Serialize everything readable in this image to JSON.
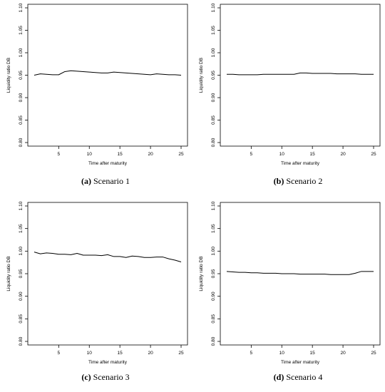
{
  "chart_data": [
    {
      "type": "line",
      "caption_tag": "(a)",
      "caption_text": "Scenario 1",
      "xlabel": "Time after maturity",
      "ylabel": "Liquidity ratio DB",
      "xlim": [
        1,
        25
      ],
      "ylim": [
        0.8,
        1.1
      ],
      "x_ticks": [
        5,
        10,
        15,
        20,
        25
      ],
      "y_ticks": [
        "0.80",
        "0.85",
        "0.90",
        "0.95",
        "1.00",
        "1.05",
        "1.10"
      ],
      "x": [
        1,
        2,
        3,
        4,
        5,
        6,
        7,
        8,
        9,
        10,
        11,
        12,
        13,
        14,
        15,
        16,
        17,
        18,
        19,
        20,
        21,
        22,
        23,
        24,
        25
      ],
      "series": [
        {
          "values": [
            0.95,
            0.953,
            0.952,
            0.951,
            0.951,
            0.958,
            0.96,
            0.959,
            0.958,
            0.957,
            0.956,
            0.955,
            0.955,
            0.957,
            0.956,
            0.955,
            0.954,
            0.953,
            0.952,
            0.951,
            0.953,
            0.952,
            0.951,
            0.951,
            0.95
          ]
        }
      ]
    },
    {
      "type": "line",
      "caption_tag": "(b)",
      "caption_text": "Scenario 2",
      "xlabel": "Time after maturity",
      "ylabel": "Liquidity ratio DB",
      "xlim": [
        1,
        25
      ],
      "ylim": [
        0.8,
        1.1
      ],
      "x_ticks": [
        5,
        10,
        15,
        20,
        25
      ],
      "y_ticks": [
        "0.80",
        "0.85",
        "0.90",
        "0.95",
        "1.00",
        "1.05",
        "1.10"
      ],
      "x": [
        1,
        2,
        3,
        4,
        5,
        6,
        7,
        8,
        9,
        10,
        11,
        12,
        13,
        14,
        15,
        16,
        17,
        18,
        19,
        20,
        21,
        22,
        23,
        24,
        25
      ],
      "series": [
        {
          "values": [
            0.952,
            0.952,
            0.951,
            0.951,
            0.951,
            0.951,
            0.952,
            0.952,
            0.952,
            0.952,
            0.952,
            0.952,
            0.955,
            0.955,
            0.954,
            0.954,
            0.954,
            0.954,
            0.953,
            0.953,
            0.953,
            0.953,
            0.952,
            0.952,
            0.952
          ]
        }
      ]
    },
    {
      "type": "line",
      "caption_tag": "(c)",
      "caption_text": "Scenario 3",
      "xlabel": "Time after maturity",
      "ylabel": "Liquidity ratio DB",
      "xlim": [
        1,
        25
      ],
      "ylim": [
        0.8,
        1.1
      ],
      "x_ticks": [
        5,
        10,
        15,
        20,
        25
      ],
      "y_ticks": [
        "0.80",
        "0.85",
        "0.90",
        "0.95",
        "1.00",
        "1.05",
        "1.10"
      ],
      "x": [
        1,
        2,
        3,
        4,
        5,
        6,
        7,
        8,
        9,
        10,
        11,
        12,
        13,
        14,
        15,
        16,
        17,
        18,
        19,
        20,
        21,
        22,
        23,
        24,
        25
      ],
      "series": [
        {
          "values": [
            0.998,
            0.994,
            0.996,
            0.995,
            0.993,
            0.993,
            0.992,
            0.995,
            0.991,
            0.991,
            0.991,
            0.99,
            0.992,
            0.988,
            0.988,
            0.986,
            0.989,
            0.988,
            0.986,
            0.986,
            0.987,
            0.987,
            0.983,
            0.98,
            0.976
          ]
        }
      ]
    },
    {
      "type": "line",
      "caption_tag": "(d)",
      "caption_text": "Scenario 4",
      "xlabel": "Time after maturity",
      "ylabel": "Liquidity ratio DB",
      "xlim": [
        1,
        25
      ],
      "ylim": [
        0.8,
        1.1
      ],
      "x_ticks": [
        5,
        10,
        15,
        20,
        25
      ],
      "y_ticks": [
        "0.80",
        "0.85",
        "0.90",
        "0.95",
        "1.00",
        "1.05",
        "1.10"
      ],
      "x": [
        1,
        2,
        3,
        4,
        5,
        6,
        7,
        8,
        9,
        10,
        11,
        12,
        13,
        14,
        15,
        16,
        17,
        18,
        19,
        20,
        21,
        22,
        23,
        24,
        25
      ],
      "series": [
        {
          "values": [
            0.955,
            0.954,
            0.953,
            0.953,
            0.952,
            0.952,
            0.951,
            0.951,
            0.951,
            0.95,
            0.95,
            0.95,
            0.949,
            0.949,
            0.949,
            0.949,
            0.949,
            0.948,
            0.948,
            0.948,
            0.948,
            0.951,
            0.955,
            0.955,
            0.955
          ]
        }
      ]
    }
  ]
}
